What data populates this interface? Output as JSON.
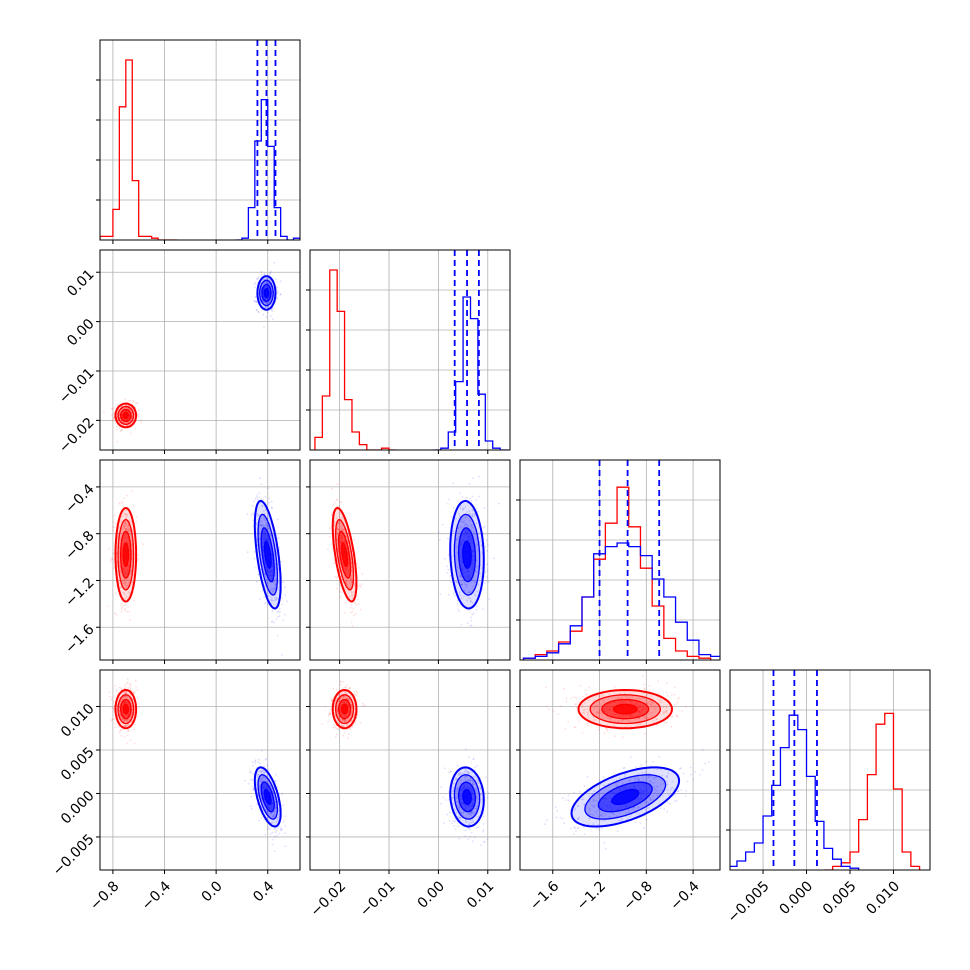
{
  "chart_data": {
    "type": "corner",
    "title": "",
    "n_params": 4,
    "grid": true,
    "legend": "none",
    "colors": {
      "red": "#ff0000",
      "blue": "#0000ff"
    },
    "series": [
      {
        "color": "#ff0000",
        "marginals": [
          {
            "bins": [
              -0.9,
              -0.85,
              -0.8,
              -0.75,
              -0.7,
              -0.65,
              -0.6,
              -0.55,
              -0.5,
              -0.45,
              -0.4,
              -0.35,
              -0.3
            ],
            "counts": [
              0.02,
              0.02,
              0.17,
              0.74,
              1.0,
              0.33,
              0.02,
              0.02,
              0.01,
              0,
              0,
              0
            ]
          },
          {
            "bins": [
              -0.025,
              -0.0235,
              -0.022,
              -0.0205,
              -0.019,
              -0.0175,
              -0.016,
              -0.0145,
              -0.013,
              -0.0115,
              -0.01,
              -0.0085
            ],
            "counts": [
              0.07,
              0.3,
              1.0,
              0.77,
              0.28,
              0.1,
              0.03,
              0,
              0,
              0.01,
              0
            ]
          },
          {
            "bins": [
              -1.85,
              -1.75,
              -1.65,
              -1.55,
              -1.45,
              -1.35,
              -1.25,
              -1.15,
              -1.05,
              -0.95,
              -0.85,
              -0.75,
              -0.65,
              -0.55,
              -0.45,
              -0.35,
              -0.25
            ],
            "counts": [
              0.01,
              0.03,
              0.05,
              0.1,
              0.16,
              0.35,
              0.56,
              0.76,
              0.96,
              0.74,
              0.51,
              0.3,
              0.12,
              0.05,
              0.02,
              0.01
            ]
          },
          {
            "bins": [
              0.002,
              0.003,
              0.004,
              0.005,
              0.006,
              0.007,
              0.008,
              0.009,
              0.01,
              0.011,
              0.012,
              0.013
            ],
            "counts": [
              0,
              0.02,
              0.04,
              0.1,
              0.28,
              0.53,
              0.81,
              0.87,
              0.45,
              0.1,
              0.02
            ]
          }
        ],
        "contours": [
          {
            "p": [
              0,
              1
            ],
            "center": [
              -0.7,
              -0.019
            ],
            "sd": [
              0.04,
              0.0012
            ],
            "rho": 0.0
          },
          {
            "p": [
              0,
              2
            ],
            "center": [
              -0.7,
              -0.98
            ],
            "sd": [
              0.04,
              0.2
            ],
            "rho": 0.0
          },
          {
            "p": [
              0,
              3
            ],
            "center": [
              -0.7,
              0.0097
            ],
            "sd": [
              0.04,
              0.0011
            ],
            "rho": 0.0
          },
          {
            "p": [
              1,
              2
            ],
            "center": [
              -0.019,
              -0.98
            ],
            "sd": [
              0.0012,
              0.2
            ],
            "rho": -0.6
          },
          {
            "p": [
              1,
              3
            ],
            "center": [
              -0.019,
              0.0097
            ],
            "sd": [
              0.0012,
              0.0011
            ],
            "rho": 0.0
          },
          {
            "p": [
              2,
              3
            ],
            "center": [
              -0.98,
              0.0097
            ],
            "sd": [
              0.2,
              0.0011
            ],
            "rho": 0.0
          }
        ]
      },
      {
        "color": "#0000ff",
        "marginals": [
          {
            "bins": [
              0.15,
              0.2,
              0.25,
              0.3,
              0.35,
              0.4,
              0.45,
              0.5,
              0.55,
              0.6,
              0.65
            ],
            "counts": [
              0,
              0.01,
              0.18,
              0.55,
              0.78,
              0.52,
              0.18,
              0.02,
              0,
              0.01
            ]
          },
          {
            "bins": [
              -0.001,
              0.0005,
              0.002,
              0.0035,
              0.005,
              0.0065,
              0.008,
              0.0095,
              0.011,
              0.0125,
              0.014
            ],
            "counts": [
              0,
              0.01,
              0.1,
              0.38,
              0.85,
              0.73,
              0.31,
              0.05,
              0.01,
              0
            ]
          },
          {
            "bins": [
              -1.85,
              -1.75,
              -1.65,
              -1.55,
              -1.45,
              -1.35,
              -1.25,
              -1.15,
              -1.05,
              -0.95,
              -0.85,
              -0.75,
              -0.65,
              -0.55,
              -0.45,
              -0.35,
              -0.25,
              -0.15
            ],
            "counts": [
              0.01,
              0.02,
              0.04,
              0.09,
              0.19,
              0.35,
              0.59,
              0.63,
              0.65,
              0.63,
              0.58,
              0.45,
              0.35,
              0.21,
              0.11,
              0.03,
              0.02
            ]
          },
          {
            "bins": [
              -0.009,
              -0.008,
              -0.007,
              -0.006,
              -0.005,
              -0.004,
              -0.003,
              -0.002,
              -0.001,
              0,
              0.001,
              0.002,
              0.003,
              0.004,
              0.005,
              0.006
            ],
            "counts": [
              0.02,
              0.05,
              0.1,
              0.15,
              0.3,
              0.47,
              0.68,
              0.86,
              0.78,
              0.52,
              0.27,
              0.12,
              0.06,
              0.02,
              0.01
            ]
          }
        ],
        "quantiles": [
          [
            0.32,
            0.39,
            0.46
          ],
          [
            0.0033,
            0.0058,
            0.0082
          ],
          [
            -1.2,
            -0.96,
            -0.69
          ],
          [
            -0.0038,
            -0.0014,
            0.0012
          ]
        ],
        "contours": [
          {
            "p": [
              0,
              1
            ],
            "center": [
              0.39,
              0.0058
            ],
            "sd": [
              0.035,
              0.0017
            ],
            "rho": 0.0
          },
          {
            "p": [
              0,
              2
            ],
            "center": [
              0.4,
              -0.98
            ],
            "sd": [
              0.05,
              0.23
            ],
            "rho": -0.55
          },
          {
            "p": [
              0,
              3
            ],
            "center": [
              0.4,
              -0.0004
            ],
            "sd": [
              0.05,
              0.0017
            ],
            "rho": -0.55
          },
          {
            "p": [
              1,
              2
            ],
            "center": [
              0.0058,
              -0.98
            ],
            "sd": [
              0.0017,
              0.23
            ],
            "rho": -0.1
          },
          {
            "p": [
              1,
              3
            ],
            "center": [
              0.0058,
              -0.0004
            ],
            "sd": [
              0.0017,
              0.0017
            ],
            "rho": -0.1
          },
          {
            "p": [
              2,
              3
            ],
            "center": [
              -0.98,
              -0.0004
            ],
            "sd": [
              0.23,
              0.0017
            ],
            "rho": 0.55
          }
        ]
      }
    ],
    "axes": [
      {
        "range": [
          -0.9,
          0.65
        ],
        "ticks": [
          -0.8,
          -0.4,
          0.0,
          0.4
        ],
        "tick_labels": [
          "−0.8",
          "−0.4",
          "0.0",
          "0.4"
        ]
      },
      {
        "range": [
          -0.026,
          0.0145
        ],
        "ticks": [
          -0.02,
          -0.01,
          0.0,
          0.01
        ],
        "tick_labels": [
          "−0.02",
          "−0.01",
          "0.00",
          "0.01"
        ]
      },
      {
        "range": [
          -1.88,
          -0.17
        ],
        "ticks": [
          -1.6,
          -1.2,
          -0.8,
          -0.4
        ],
        "tick_labels": [
          "−1.6",
          "−1.2",
          "−0.8",
          "−0.4"
        ]
      },
      {
        "range": [
          -0.0088,
          0.0142
        ],
        "ticks": [
          -0.005,
          0.0,
          0.005,
          0.01
        ],
        "tick_labels": [
          "−0.005",
          "0.000",
          "0.005",
          "0.010"
        ]
      }
    ]
  }
}
